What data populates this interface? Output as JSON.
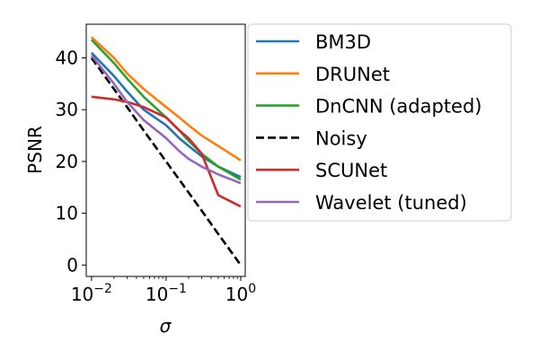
{
  "chart_data": {
    "type": "line",
    "title": "",
    "xlabel": "σ",
    "ylabel": "PSNR",
    "xscale": "log",
    "xlim": [
      0.0085,
      1.15
    ],
    "ylim": [
      -2.2,
      46.5
    ],
    "xticks": [
      {
        "value": 0.01,
        "base": "10",
        "exp": "−2"
      },
      {
        "value": 0.1,
        "base": "10",
        "exp": "−1"
      },
      {
        "value": 1,
        "base": "10",
        "exp": "0"
      }
    ],
    "yticks": [
      0,
      10,
      20,
      30,
      40
    ],
    "grid": false,
    "legend": "outside-right",
    "x": [
      0.01,
      0.02,
      0.03,
      0.05,
      0.1,
      0.15,
      0.2,
      0.3,
      0.5,
      1.0
    ],
    "series": [
      {
        "name": "BM3D",
        "color": "#1f77b4",
        "dash": "solid",
        "values": [
          41.0,
          36.5,
          33.5,
          30.0,
          27.0,
          24.5,
          23.0,
          21.0,
          19.0,
          17.0
        ]
      },
      {
        "name": "DRUNet",
        "color": "#ff7f0e",
        "dash": "solid",
        "values": [
          44.0,
          40.0,
          37.0,
          34.0,
          30.5,
          28.5,
          27.0,
          25.0,
          23.0,
          20.2
        ]
      },
      {
        "name": "DnCNN (adapted)",
        "color": "#2ca02c",
        "dash": "solid",
        "values": [
          43.5,
          39.0,
          36.0,
          32.5,
          28.5,
          26.0,
          24.0,
          21.5,
          19.0,
          16.5
        ]
      },
      {
        "name": "Noisy",
        "color": "#000000",
        "dash": "dashed",
        "values": [
          40.0,
          34.0,
          30.5,
          26.0,
          20.0,
          16.5,
          14.0,
          10.5,
          6.0,
          0.0
        ]
      },
      {
        "name": "SCUNet",
        "color": "#d62728",
        "dash": "solid",
        "values": [
          32.5,
          32.0,
          31.5,
          30.5,
          28.5,
          26.0,
          24.5,
          21.5,
          13.5,
          11.3
        ]
      },
      {
        "name": "Wavelet (tuned)",
        "color": "#9467bd",
        "dash": "solid",
        "values": [
          40.5,
          35.0,
          31.5,
          28.0,
          24.5,
          22.0,
          20.5,
          19.0,
          17.5,
          15.8
        ]
      }
    ]
  }
}
